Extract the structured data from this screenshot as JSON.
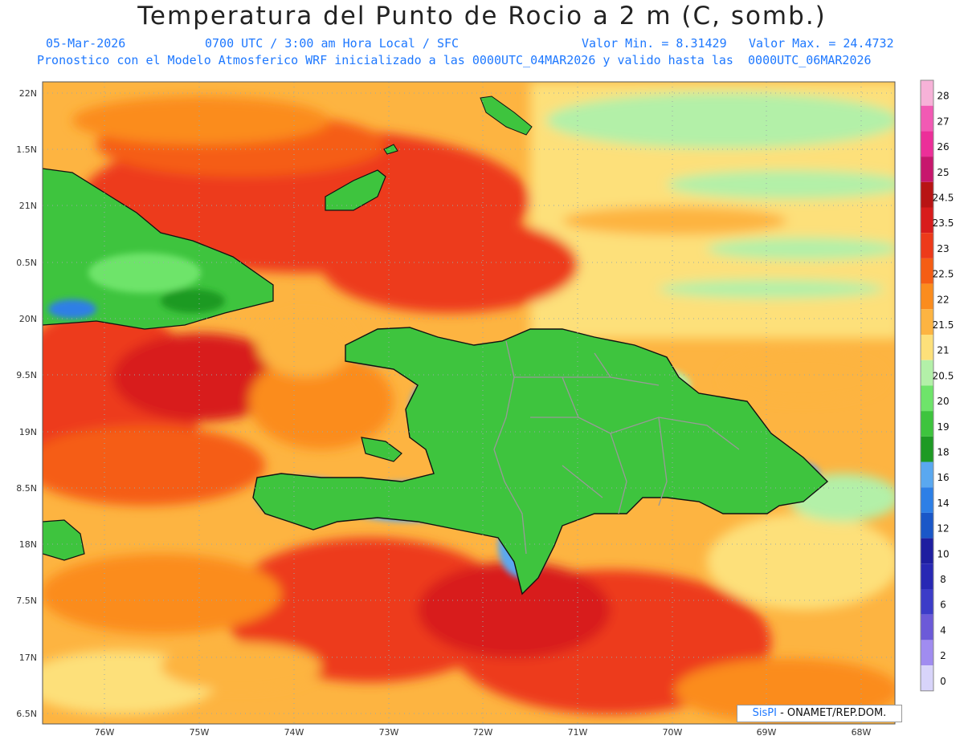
{
  "header": {
    "title": "Temperatura del Punto de Rocio a 2 m (C, somb.)",
    "date": "05-Mar-2026",
    "time": "0700 UTC / 3:00 am Hora Local / SFC",
    "min": "Valor Min. = 8.31429",
    "max": "Valor Max. = 24.4732",
    "model_info": "Pronostico con el Modelo Atmosferico WRF inicializado a las 0000UTC_04MAR2026 y valido hasta las  0000UTC_06MAR2026"
  },
  "axes": {
    "lat_labels": [
      "22N",
      "1.5N",
      "21N",
      "0.5N",
      "20N",
      "9.5N",
      "19N",
      "8.5N",
      "18N",
      "7.5N",
      "17N",
      "6.5N"
    ],
    "lon_labels": [
      "76W",
      "75W",
      "74W",
      "73W",
      "72W",
      "71W",
      "70W",
      "69W",
      "68W"
    ]
  },
  "colorbar": {
    "labels": [
      "28",
      "27",
      "26",
      "25",
      "24.5",
      "23.5",
      "23",
      "22.5",
      "22",
      "21.5",
      "21",
      "20.5",
      "20",
      "19",
      "18",
      "16",
      "14",
      "12",
      "10",
      "8",
      "6",
      "4",
      "2",
      "0"
    ],
    "colors": [
      "#f7b2d8",
      "#f25ab4",
      "#ec2f99",
      "#c7166d",
      "#b81414",
      "#d81c1c",
      "#ed3a1a",
      "#f55d14",
      "#fb8c1e",
      "#fdb441",
      "#fde07a",
      "#b3f0a8",
      "#6ee46a",
      "#3ec43e",
      "#1e9a24",
      "#5aa8f0",
      "#2d7fe6",
      "#1a57c8",
      "#1e1ea0",
      "#2828b4",
      "#3c3cc8",
      "#6c5ad8",
      "#a08cf0",
      "#d8d4fa"
    ],
    "bottom_label": "0"
  },
  "credit": {
    "logo": "SisPI",
    "text": "- ONAMET/REP.DOM."
  }
}
